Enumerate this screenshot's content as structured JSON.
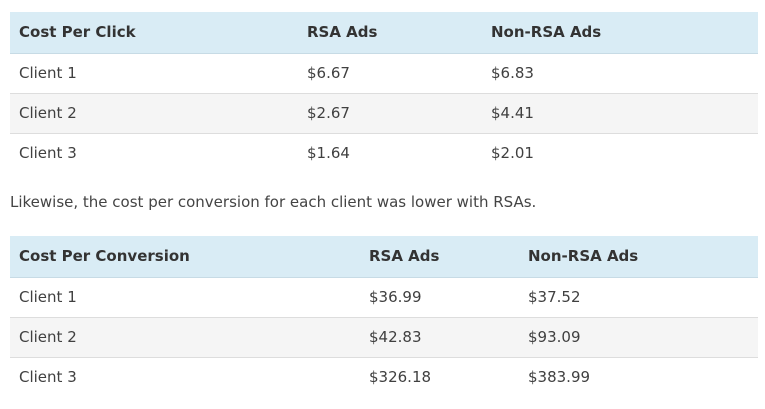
{
  "table1": {
    "headers": [
      "Cost Per Click",
      "RSA Ads",
      "Non-RSA Ads"
    ],
    "rows": [
      [
        "Client 1",
        "$6.67",
        "$6.83"
      ],
      [
        "Client 2",
        "$2.67",
        "$4.41"
      ],
      [
        "Client 3",
        "$1.64",
        "$2.01"
      ]
    ]
  },
  "paragraph": "Likewise, the cost per conversion for each client was lower with RSAs.",
  "table2": {
    "headers": [
      "Cost Per Conversion",
      "RSA Ads",
      "Non-RSA Ads"
    ],
    "rows": [
      [
        "Client 1",
        "$36.99",
        "$37.52"
      ],
      [
        "Client 2",
        "$42.83",
        "$93.09"
      ],
      [
        "Client 3",
        "$326.18",
        "$383.99"
      ]
    ]
  },
  "colors": {
    "header_bg": "#d9ecf5",
    "stripe_bg": "#f5f5f5",
    "text": "#333333"
  }
}
